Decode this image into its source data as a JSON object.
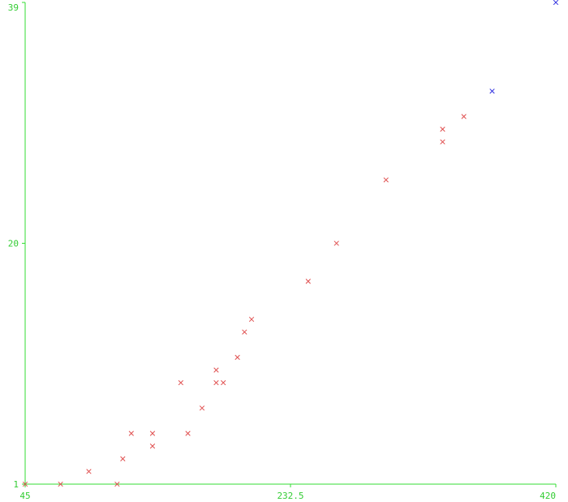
{
  "colors": {
    "background": "#ffffff",
    "axis": "#33dd33",
    "tick_text": "#33cc33",
    "series_a": "#e05050",
    "series_b": "#3030e0"
  },
  "chart_data": {
    "type": "scatter",
    "title": "",
    "xlabel": "",
    "ylabel": "",
    "xlim": [
      45,
      420
    ],
    "ylim": [
      1,
      39
    ],
    "grid": false,
    "legend": "none",
    "x_ticks": [
      {
        "value": 45,
        "label": "45"
      },
      {
        "value": 232.5,
        "label": "232.5"
      },
      {
        "value": 420,
        "label": "420"
      }
    ],
    "y_ticks": [
      {
        "value": 1,
        "label": "1"
      },
      {
        "value": 20,
        "label": "20"
      },
      {
        "value": 39,
        "label": "39"
      }
    ],
    "series": [
      {
        "color_key": "series_a",
        "marker": "x",
        "points": [
          [
            45,
            1
          ],
          [
            70,
            1
          ],
          [
            90,
            2
          ],
          [
            110,
            1
          ],
          [
            114,
            3
          ],
          [
            120,
            5
          ],
          [
            135,
            4
          ],
          [
            135,
            5
          ],
          [
            155,
            9
          ],
          [
            160,
            5
          ],
          [
            170,
            7
          ],
          [
            180,
            9
          ],
          [
            180,
            10
          ],
          [
            185,
            9
          ],
          [
            195,
            11
          ],
          [
            200,
            13
          ],
          [
            205,
            14
          ],
          [
            245,
            17
          ],
          [
            265,
            20
          ],
          [
            300,
            25
          ],
          [
            340,
            28
          ],
          [
            340,
            29
          ],
          [
            355,
            30
          ]
        ]
      },
      {
        "color_key": "series_b",
        "marker": "x",
        "points": [
          [
            375,
            32
          ],
          [
            420,
            39
          ]
        ]
      }
    ]
  }
}
